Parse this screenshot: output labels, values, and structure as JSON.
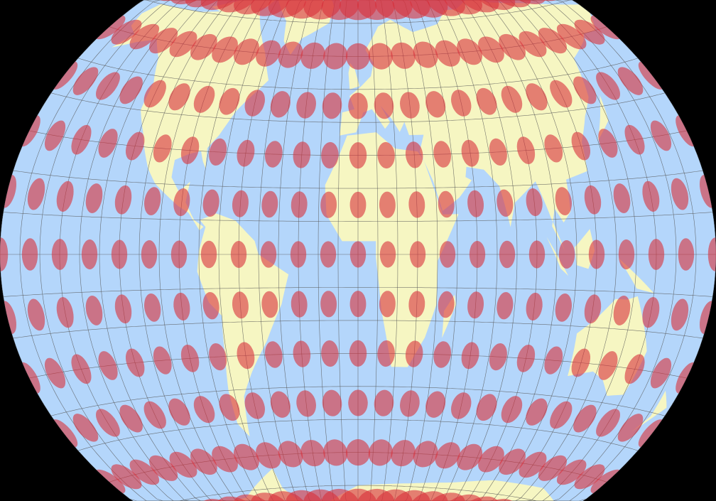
{
  "map": {
    "projection": "winkel-tripel",
    "feature": "tissot-indicatrix",
    "graticule_step_deg": 10,
    "tissot_step_deg": 15,
    "tissot_radius_deg": 4,
    "colors": {
      "background": "#000000",
      "ocean": "#b4d6fb",
      "land": "#f6f6c2",
      "tissot": "#d8303a",
      "graticule": "#555555"
    }
  }
}
